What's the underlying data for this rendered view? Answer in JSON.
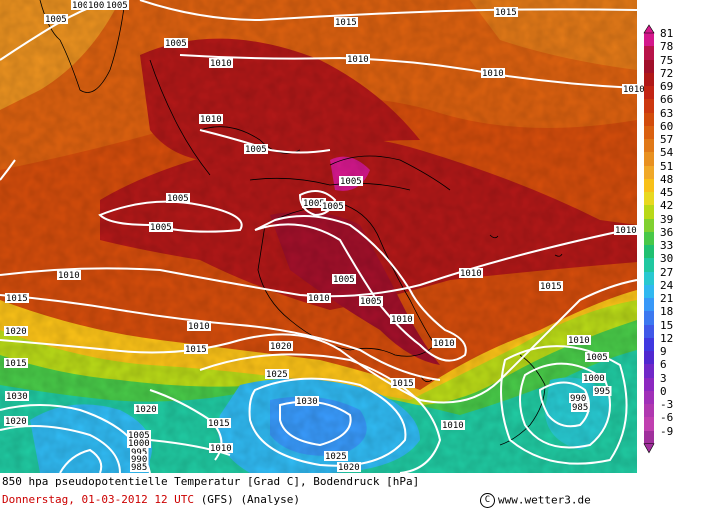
{
  "map": {
    "isobar_color": "#ffffff",
    "coast_color": "#000000",
    "isobar_labels": [
      "1005",
      "1005",
      "1005",
      "1005",
      "1010",
      "1005",
      "1015",
      "1015",
      "1010",
      "1010",
      "1010",
      "1005",
      "1005",
      "1005",
      "1005",
      "1005",
      "1005",
      "1010",
      "1010",
      "1010",
      "1005",
      "1010",
      "1010",
      "1015",
      "1015",
      "1015",
      "1010",
      "1010",
      "1020",
      "1025",
      "1020",
      "1015",
      "1030",
      "1015",
      "1010",
      "1025",
      "1020",
      "1020",
      "1010",
      "1015",
      "1010",
      "1010",
      "1005",
      "1005",
      "1000",
      "995",
      "990",
      "985",
      "1020",
      "1030",
      "1005",
      "1000",
      "995",
      "990",
      "985"
    ]
  },
  "legend": {
    "ticks": [
      "81",
      "78",
      "75",
      "72",
      "69",
      "66",
      "63",
      "60",
      "57",
      "54",
      "51",
      "48",
      "45",
      "42",
      "39",
      "36",
      "33",
      "30",
      "27",
      "24",
      "21",
      "18",
      "15",
      "12",
      "9",
      "6",
      "3",
      "0",
      "-3",
      "-6",
      "-9"
    ],
    "colors": [
      "#d4188c",
      "#b8144a",
      "#a0102a",
      "#b01818",
      "#c22414",
      "#cc3810",
      "#d24c0c",
      "#da6010",
      "#e07818",
      "#e89020",
      "#f0a828",
      "#f8c018",
      "#e8d820",
      "#b8d818",
      "#80d030",
      "#48c848",
      "#20c070",
      "#20c8a0",
      "#28c8d0",
      "#30b8f0",
      "#3898f8",
      "#3c78f0",
      "#4058e8",
      "#4038e0",
      "#5028d0",
      "#7028c8",
      "#8c28c0",
      "#a030b8",
      "#b038b0",
      "#c040b0",
      "#a0309c"
    ]
  },
  "caption": {
    "title": "850 hpa pseudopotentielle Temperatur [Grad C], Bodendruck [hPa]",
    "date": "Donnerstag, 01-03-2012  12 UTC",
    "model": "(GFS)",
    "analysis": "(Analyse)",
    "copyright_symbol": "C",
    "website": "www.wetter3.de"
  }
}
